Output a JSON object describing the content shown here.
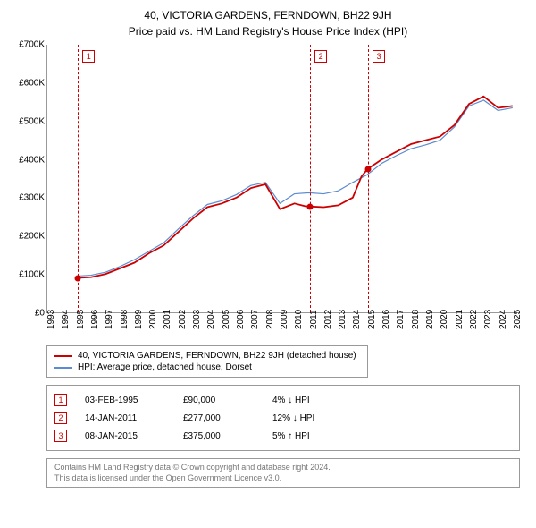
{
  "title": "40, VICTORIA GARDENS, FERNDOWN, BH22 9JH",
  "subtitle": "Price paid vs. HM Land Registry's House Price Index (HPI)",
  "chart": {
    "type": "line",
    "background_color": "#ffffff",
    "axis_color": "#999999",
    "xlim": [
      1993,
      2025.5
    ],
    "ylim": [
      0,
      700
    ],
    "y_ticks": [
      0,
      100,
      200,
      300,
      400,
      500,
      600,
      700
    ],
    "y_labels": [
      "£0",
      "£100K",
      "£200K",
      "£300K",
      "£400K",
      "£500K",
      "£600K",
      "£700K"
    ],
    "x_ticks": [
      1993,
      1994,
      1995,
      1996,
      1997,
      1998,
      1999,
      2000,
      2001,
      2002,
      2003,
      2004,
      2005,
      2006,
      2007,
      2008,
      2009,
      2010,
      2011,
      2012,
      2013,
      2014,
      2015,
      2016,
      2017,
      2018,
      2019,
      2020,
      2021,
      2022,
      2023,
      2024,
      2025
    ],
    "title_fontsize": 12,
    "label_fontsize": 10,
    "line_width_property": 1.8,
    "line_width_hpi": 1.2,
    "series": {
      "property": {
        "label": "40, VICTORIA GARDENS, FERNDOWN, BH22 9JH (detached house)",
        "color": "#cc0000",
        "data": [
          [
            1995.1,
            90
          ],
          [
            1996,
            92
          ],
          [
            1997,
            100
          ],
          [
            1998,
            115
          ],
          [
            1999,
            130
          ],
          [
            2000,
            155
          ],
          [
            2001,
            175
          ],
          [
            2002,
            210
          ],
          [
            2003,
            245
          ],
          [
            2004,
            275
          ],
          [
            2005,
            285
          ],
          [
            2006,
            300
          ],
          [
            2007,
            325
          ],
          [
            2008,
            335
          ],
          [
            2009,
            270
          ],
          [
            2010,
            285
          ],
          [
            2010.7,
            278
          ],
          [
            2011.04,
            277
          ],
          [
            2012,
            275
          ],
          [
            2013,
            280
          ],
          [
            2014,
            300
          ],
          [
            2014.6,
            355
          ],
          [
            2015.02,
            375
          ],
          [
            2016,
            400
          ],
          [
            2017,
            420
          ],
          [
            2018,
            440
          ],
          [
            2019,
            450
          ],
          [
            2020,
            460
          ],
          [
            2021,
            490
          ],
          [
            2022,
            545
          ],
          [
            2023,
            565
          ],
          [
            2024,
            535
          ],
          [
            2025,
            540
          ]
        ]
      },
      "hpi": {
        "label": "HPI: Average price, detached house, Dorset",
        "color": "#5b8bd0",
        "data": [
          [
            1995.1,
            95
          ],
          [
            1996,
            97
          ],
          [
            1997,
            105
          ],
          [
            1998,
            120
          ],
          [
            1999,
            138
          ],
          [
            2000,
            160
          ],
          [
            2001,
            182
          ],
          [
            2002,
            218
          ],
          [
            2003,
            252
          ],
          [
            2004,
            282
          ],
          [
            2005,
            292
          ],
          [
            2006,
            308
          ],
          [
            2007,
            332
          ],
          [
            2008,
            340
          ],
          [
            2009,
            285
          ],
          [
            2010,
            310
          ],
          [
            2011,
            313
          ],
          [
            2012,
            310
          ],
          [
            2013,
            318
          ],
          [
            2014,
            340
          ],
          [
            2015,
            360
          ],
          [
            2016,
            390
          ],
          [
            2017,
            410
          ],
          [
            2018,
            428
          ],
          [
            2019,
            438
          ],
          [
            2020,
            450
          ],
          [
            2021,
            485
          ],
          [
            2022,
            540
          ],
          [
            2023,
            555
          ],
          [
            2024,
            528
          ],
          [
            2025,
            535
          ]
        ]
      }
    },
    "events": [
      {
        "num": "1",
        "year": 1995.1,
        "price_val": 90
      },
      {
        "num": "2",
        "year": 2011.04,
        "price_val": 277
      },
      {
        "num": "3",
        "year": 2015.02,
        "price_val": 375
      }
    ]
  },
  "legend": [
    {
      "color": "#cc0000",
      "label": "40, VICTORIA GARDENS, FERNDOWN, BH22 9JH (detached house)"
    },
    {
      "color": "#5b8bd0",
      "label": "HPI: Average price, detached house, Dorset"
    }
  ],
  "sales": [
    {
      "num": "1",
      "date": "03-FEB-1995",
      "price": "£90,000",
      "hpi": "4% ↓ HPI"
    },
    {
      "num": "2",
      "date": "14-JAN-2011",
      "price": "£277,000",
      "hpi": "12% ↓ HPI"
    },
    {
      "num": "3",
      "date": "08-JAN-2015",
      "price": "£375,000",
      "hpi": "5% ↑ HPI"
    }
  ],
  "footer": {
    "line1": "Contains HM Land Registry data © Crown copyright and database right 2024.",
    "line2": "This data is licensed under the Open Government Licence v3.0."
  }
}
